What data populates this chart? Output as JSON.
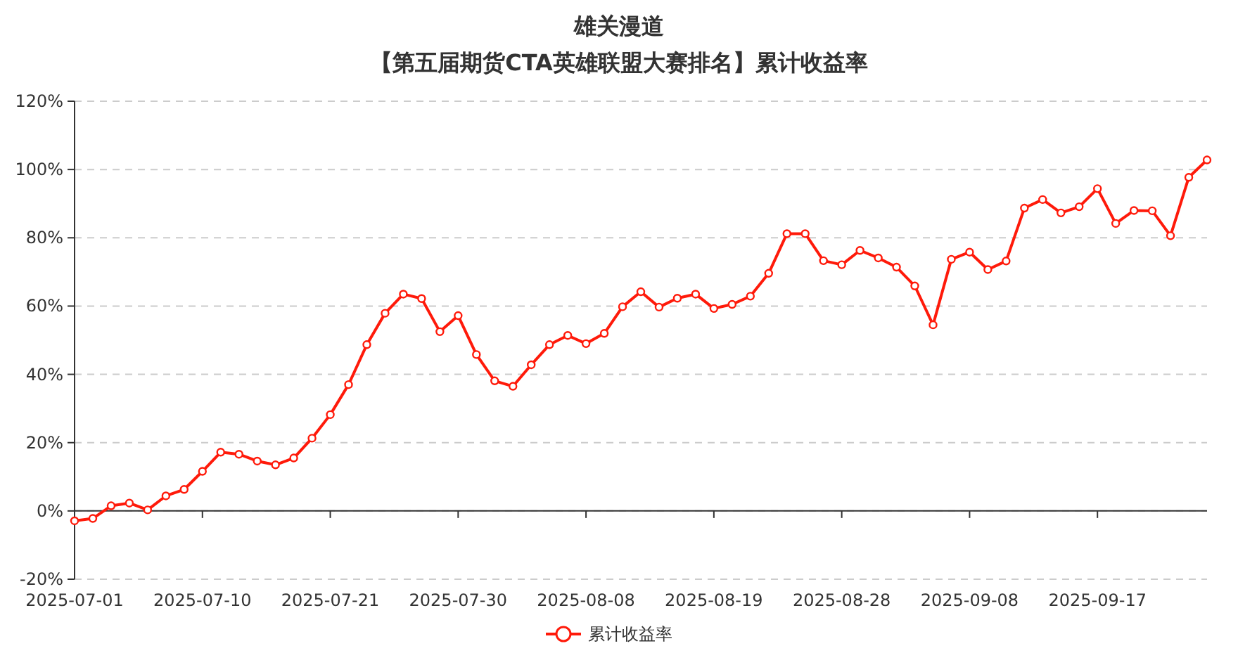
{
  "chart_data": {
    "type": "line",
    "title": "雄关漫道",
    "subtitle": "【第五届期货CTA英雄联盟大赛排名】累计收益率",
    "categories": [
      "2025-07-01",
      null,
      null,
      null,
      null,
      null,
      null,
      "2025-07-10",
      null,
      null,
      null,
      null,
      null,
      null,
      "2025-07-21",
      null,
      null,
      null,
      null,
      null,
      null,
      "2025-07-30",
      null,
      null,
      null,
      null,
      null,
      null,
      "2025-08-08",
      null,
      null,
      null,
      null,
      null,
      null,
      "2025-08-19",
      null,
      null,
      null,
      null,
      null,
      null,
      "2025-08-28",
      null,
      null,
      null,
      null,
      null,
      null,
      "2025-09-08",
      null,
      null,
      null,
      null,
      null,
      null,
      "2025-09-17",
      null,
      null,
      null,
      null,
      null,
      null
    ],
    "series": [
      {
        "name": "累计收益率",
        "color": "#ff1a0a",
        "values": [
          -2.9,
          -2.2,
          1.5,
          2.3,
          0.3,
          4.4,
          6.3,
          11.6,
          17.2,
          16.6,
          14.6,
          13.5,
          15.5,
          21.3,
          28.2,
          37.0,
          48.7,
          57.9,
          63.5,
          62.2,
          52.5,
          57.2,
          45.8,
          38.1,
          36.5,
          42.8,
          48.7,
          51.4,
          49.0,
          52.0,
          59.8,
          64.2,
          59.7,
          62.3,
          63.5,
          59.3,
          60.5,
          62.9,
          69.6,
          81.2,
          81.2,
          73.3,
          72.1,
          76.3,
          74.1,
          71.4,
          65.9,
          54.5,
          73.7,
          75.8,
          70.7,
          73.2,
          88.7,
          91.2,
          87.3,
          89.1,
          94.4,
          84.2,
          88.0,
          87.9,
          80.6,
          97.7,
          102.8
        ]
      }
    ],
    "ylim": [
      -20,
      120
    ],
    "yticks": [
      {
        "value": -20,
        "label": "-20%"
      },
      {
        "value": 0,
        "label": "0%"
      },
      {
        "value": 20,
        "label": "20%"
      },
      {
        "value": 40,
        "label": "40%"
      },
      {
        "value": 60,
        "label": "60%"
      },
      {
        "value": 80,
        "label": "80%"
      },
      {
        "value": 100,
        "label": "100%"
      },
      {
        "value": 120,
        "label": "120%"
      }
    ],
    "grid": "y",
    "legend": "bottom",
    "marker": "circle",
    "line_style": "solid"
  }
}
